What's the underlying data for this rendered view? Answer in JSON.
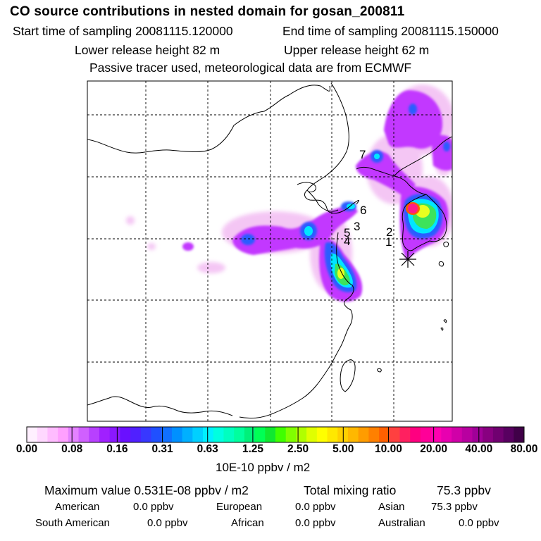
{
  "header": {
    "title": "CO  source contributions in nested domain for gosan_200811",
    "start_sampling": "Start time of sampling 20081115.120000",
    "end_sampling": "End time of sampling 20081115.150000",
    "lower_release": "Lower release height   82 m",
    "upper_release": "Upper release height   62 m",
    "tracer_note": "Passive tracer used, meteorological data are from ECMWF"
  },
  "map": {
    "site_labels": [
      "1",
      "2",
      "3",
      "4",
      "5",
      "6",
      "7"
    ],
    "receptor_marker": "asterisk-receptor"
  },
  "colorbar": {
    "tick_labels": [
      "0.00",
      "0.08",
      "0.16",
      "0.31",
      "0.63",
      "1.25",
      "2.50",
      "5.00",
      "10.00",
      "20.00",
      "40.00",
      "80.00"
    ],
    "unit": "10E-10 ppbv / m2",
    "colors": [
      "#fff0ff",
      "#ffd8ff",
      "#ffbcff",
      "#ffa0ff",
      "#e482ff",
      "#d060ff",
      "#b840ff",
      "#a020ff",
      "#8a18ff",
      "#6a10ff",
      "#5020ff",
      "#3838ff",
      "#2050ff",
      "#1070ff",
      "#0090ff",
      "#00b0ff",
      "#00d0ff",
      "#00f0ff",
      "#00ffe0",
      "#00ffc0",
      "#00ff9e",
      "#00f07a",
      "#00ff55",
      "#10e830",
      "#40ff00",
      "#80ff00",
      "#b0ff00",
      "#e0ff00",
      "#ffff00",
      "#ffe800",
      "#ffd000",
      "#ffb800",
      "#ff9c00",
      "#ff8000",
      "#ff6000",
      "#ff4040",
      "#ff2060",
      "#ff0080",
      "#ff0098",
      "#ff00b0",
      "#e800b0",
      "#d000a8",
      "#b800a0",
      "#a00098",
      "#880080",
      "#700070",
      "#580060",
      "#400048"
    ]
  },
  "summary": {
    "max_label": "Maximum value  0.531E-08 ppbv / m2",
    "total_label": "Total mixing ratio",
    "total_value": "75.3 ppbv",
    "regions": [
      {
        "name": "American",
        "value": "0.0 ppbv"
      },
      {
        "name": "European",
        "value": "0.0 ppbv"
      },
      {
        "name": "Asian",
        "value": "75.3 ppbv"
      },
      {
        "name": "South American",
        "value": "0.0 ppbv"
      },
      {
        "name": "African",
        "value": "0.0 ppbv"
      },
      {
        "name": "Australian",
        "value": "0.0 ppbv"
      }
    ]
  }
}
